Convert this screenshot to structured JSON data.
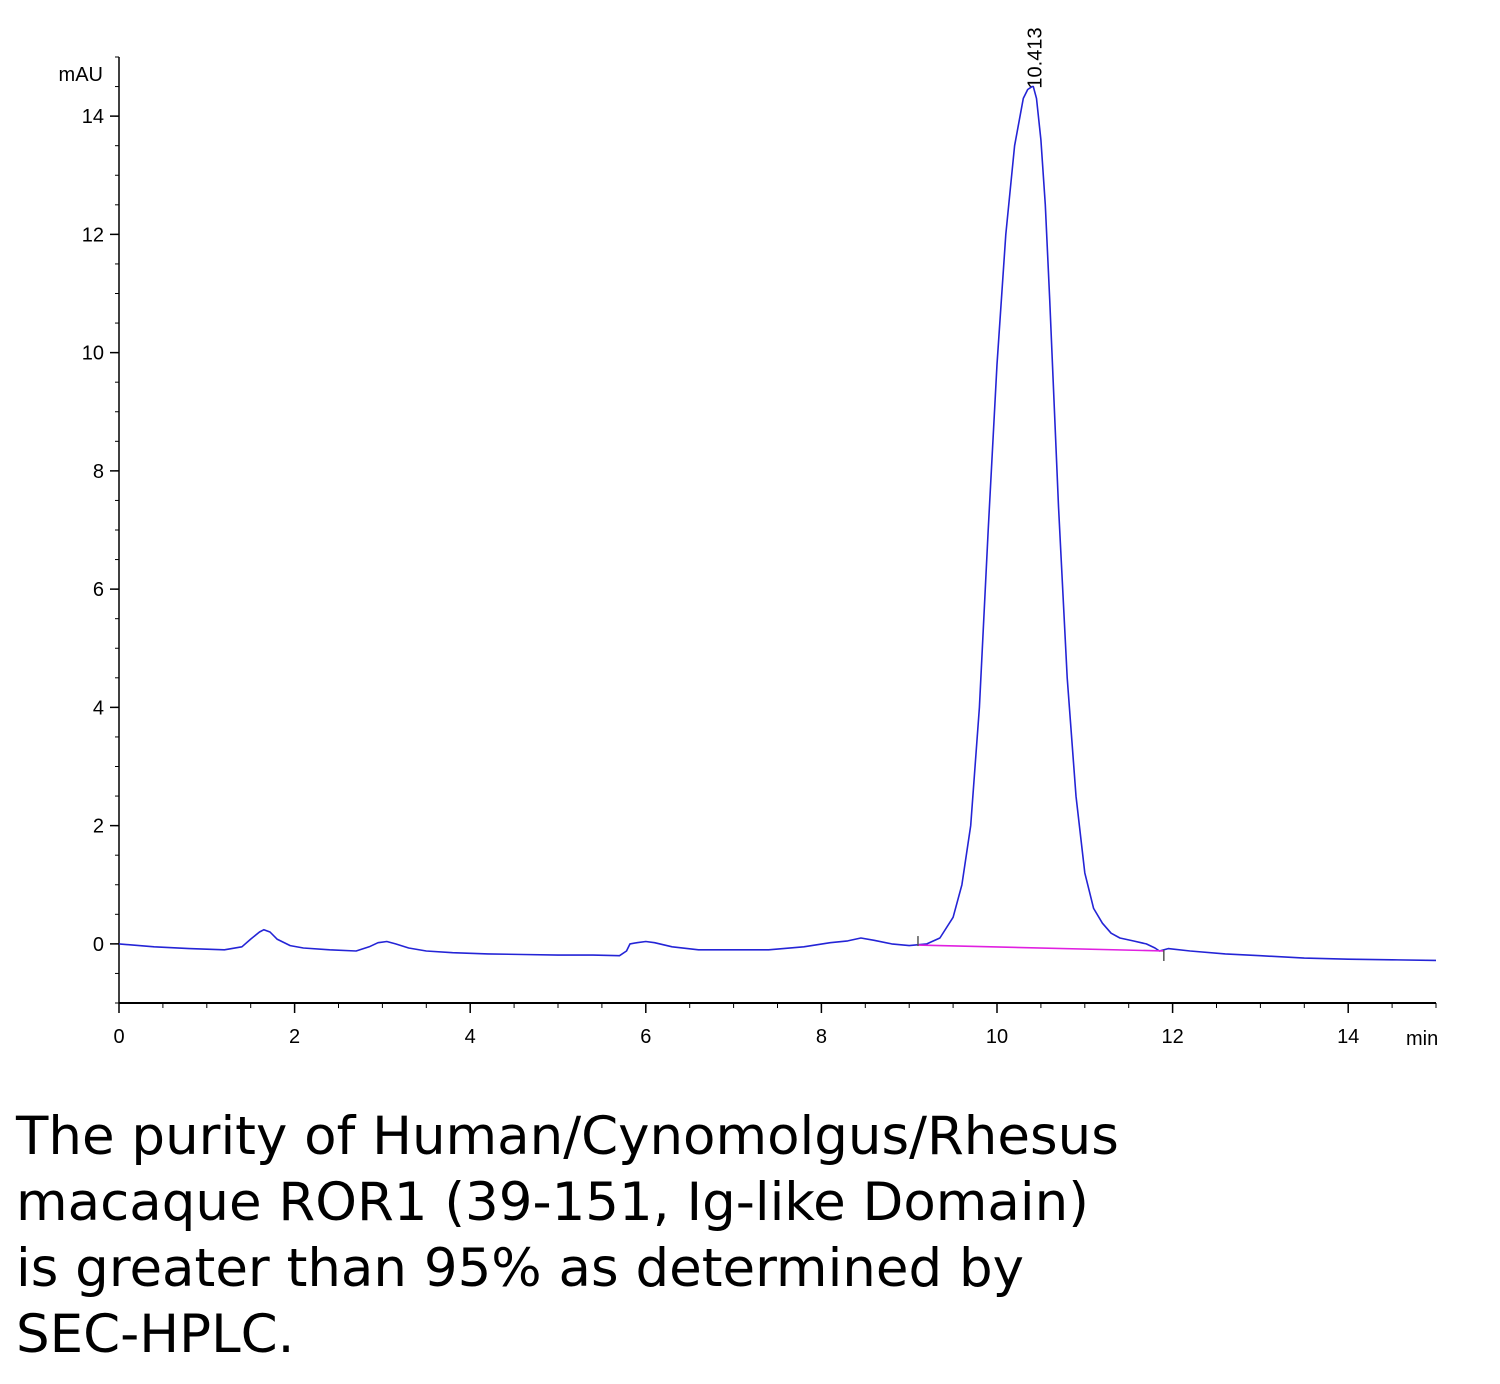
{
  "chart_data": {
    "type": "line",
    "title": "",
    "xlabel": "min",
    "ylabel": "mAU",
    "xlim": [
      0,
      15
    ],
    "ylim": [
      -1,
      15
    ],
    "x_ticks": [
      0,
      2,
      4,
      6,
      8,
      10,
      12,
      14
    ],
    "y_ticks": [
      0,
      2,
      4,
      6,
      8,
      10,
      12,
      14
    ],
    "grid": false,
    "legend": "none",
    "colors": {
      "signal": "#2424d6",
      "baseline": "#e020e0",
      "axis": "#000000"
    },
    "series": [
      {
        "x": [
          0,
          0.4,
          0.8,
          1.2,
          1.4,
          1.5,
          1.6,
          1.65,
          1.72,
          1.8,
          1.95,
          2.1,
          2.4,
          2.7,
          2.85,
          2.95,
          3.05,
          3.15,
          3.3,
          3.5,
          3.8,
          4.2,
          4.6,
          5.0,
          5.4,
          5.7,
          5.78,
          5.82,
          5.9,
          6.0,
          6.1,
          6.3,
          6.6,
          7.0,
          7.4,
          7.8,
          8.1,
          8.3,
          8.45,
          8.6,
          8.8,
          9.0,
          9.2,
          9.35,
          9.5,
          9.6,
          9.7,
          9.8,
          9.9,
          10.0,
          10.1,
          10.2,
          10.3,
          10.35,
          10.4,
          10.413,
          10.45,
          10.5,
          10.55,
          10.6,
          10.7,
          10.8,
          10.9,
          11.0,
          11.1,
          11.2,
          11.3,
          11.4,
          11.55,
          11.7,
          11.8,
          11.85,
          11.95,
          12.2,
          12.6,
          13.0,
          13.5,
          14.0,
          14.5,
          15.0
        ],
        "y": [
          0.0,
          -0.05,
          -0.08,
          -0.1,
          -0.05,
          0.08,
          0.2,
          0.24,
          0.2,
          0.08,
          -0.03,
          -0.07,
          -0.1,
          -0.12,
          -0.05,
          0.02,
          0.04,
          0.0,
          -0.07,
          -0.12,
          -0.15,
          -0.17,
          -0.18,
          -0.19,
          -0.19,
          -0.2,
          -0.12,
          0.0,
          0.02,
          0.04,
          0.02,
          -0.05,
          -0.1,
          -0.1,
          -0.1,
          -0.05,
          0.02,
          0.05,
          0.1,
          0.06,
          0.0,
          -0.03,
          0.0,
          0.1,
          0.45,
          1.0,
          2.0,
          4.0,
          7.0,
          9.8,
          12.0,
          13.5,
          14.3,
          14.45,
          14.5,
          14.5,
          14.3,
          13.6,
          12.5,
          10.9,
          7.4,
          4.5,
          2.5,
          1.2,
          0.6,
          0.35,
          0.18,
          0.1,
          0.05,
          0.0,
          -0.07,
          -0.12,
          -0.08,
          -0.12,
          -0.17,
          -0.2,
          -0.24,
          -0.26,
          -0.27,
          -0.28
        ]
      }
    ],
    "baseline": {
      "x": [
        9.1,
        11.9
      ],
      "y": [
        -0.02,
        -0.12
      ]
    },
    "peak_annotations": [
      {
        "label": "10.413",
        "x": 10.413,
        "y": 14.5
      }
    ]
  },
  "caption": {
    "lines": [
      "The purity of Human/Cynomolgus/Rhesus",
      "macaque ROR1 (39-151, Ig-like Domain)",
      "is greater than 95% as determined by",
      "SEC-HPLC."
    ]
  }
}
